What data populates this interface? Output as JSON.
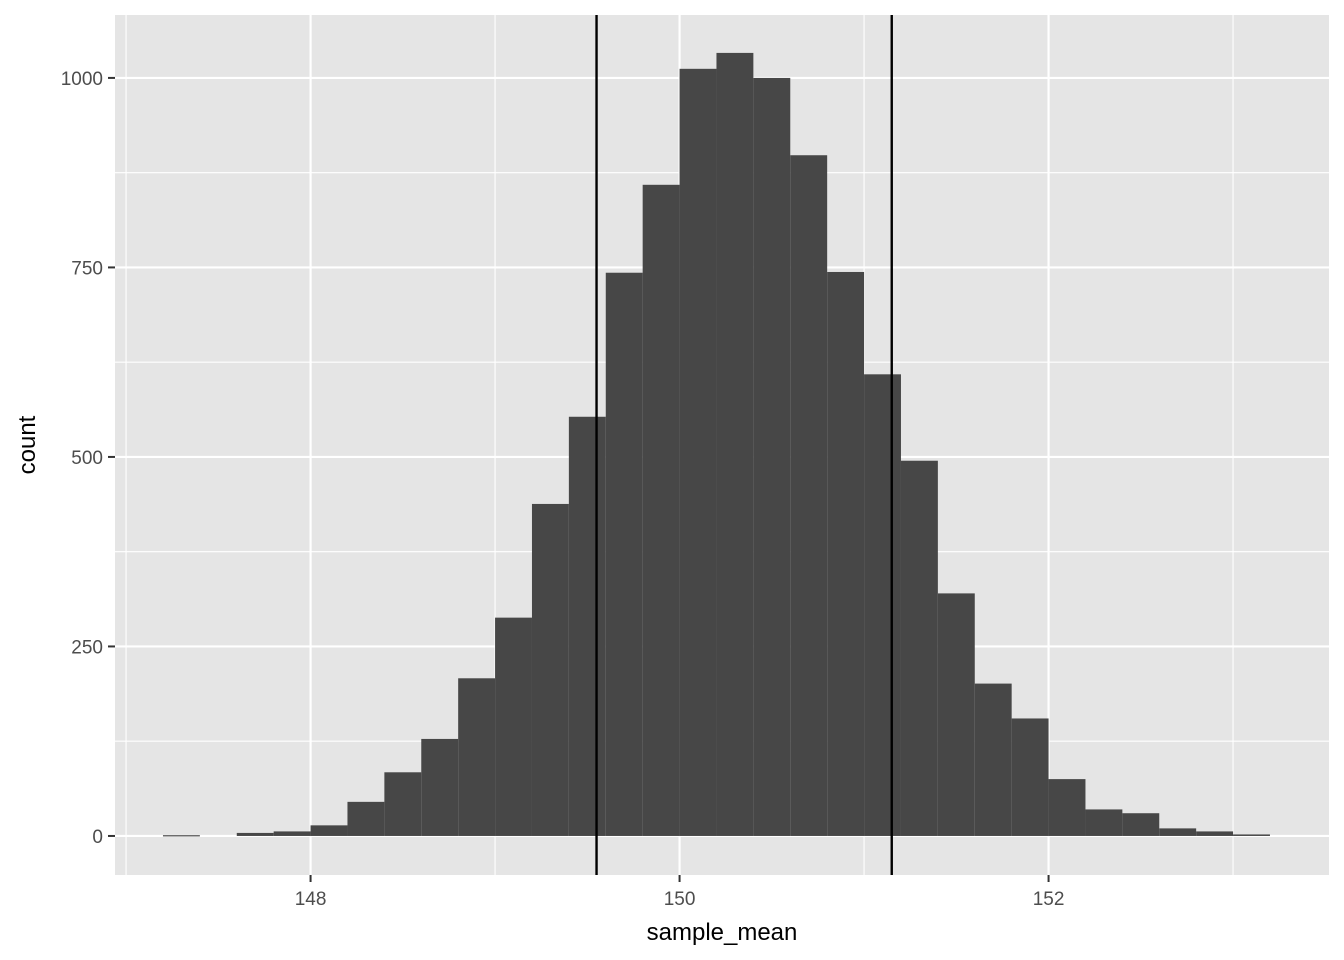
{
  "chart_data": {
    "type": "bar",
    "xlabel": "sample_mean",
    "ylabel": "count",
    "xlim": [
      146.94,
      153.52
    ],
    "ylim": [
      -51.5,
      1083
    ],
    "x_ticks": [
      148,
      150,
      152
    ],
    "y_ticks": [
      0,
      250,
      500,
      750,
      1000
    ],
    "x_minor_ticks": [
      147,
      149,
      151,
      153
    ],
    "y_minor_ticks": [
      125,
      375,
      625,
      875
    ],
    "bin_width": 0.2,
    "bins": [
      {
        "x": 147.3,
        "count": 1
      },
      {
        "x": 147.5,
        "count": 0
      },
      {
        "x": 147.7,
        "count": 4
      },
      {
        "x": 147.9,
        "count": 6
      },
      {
        "x": 148.1,
        "count": 14
      },
      {
        "x": 148.3,
        "count": 45
      },
      {
        "x": 148.5,
        "count": 84
      },
      {
        "x": 148.7,
        "count": 128
      },
      {
        "x": 148.9,
        "count": 208
      },
      {
        "x": 149.1,
        "count": 288
      },
      {
        "x": 149.3,
        "count": 438
      },
      {
        "x": 149.5,
        "count": 553
      },
      {
        "x": 149.7,
        "count": 743
      },
      {
        "x": 149.9,
        "count": 859
      },
      {
        "x": 150.1,
        "count": 1012
      },
      {
        "x": 150.3,
        "count": 1033
      },
      {
        "x": 150.5,
        "count": 1000
      },
      {
        "x": 150.7,
        "count": 898
      },
      {
        "x": 150.9,
        "count": 744
      },
      {
        "x": 151.1,
        "count": 609
      },
      {
        "x": 151.3,
        "count": 495
      },
      {
        "x": 151.5,
        "count": 320
      },
      {
        "x": 151.7,
        "count": 201
      },
      {
        "x": 151.9,
        "count": 155
      },
      {
        "x": 152.1,
        "count": 75
      },
      {
        "x": 152.3,
        "count": 35
      },
      {
        "x": 152.5,
        "count": 30
      },
      {
        "x": 152.7,
        "count": 10
      },
      {
        "x": 152.9,
        "count": 6
      },
      {
        "x": 153.1,
        "count": 2
      }
    ],
    "vlines": [
      149.55,
      151.15
    ],
    "grid": true,
    "colors": {
      "panel_background": "#e5e5e5",
      "grid": "#ffffff",
      "bar_fill": "#474747",
      "vline": "#000000",
      "tick_label": "#4d4d4d",
      "tick_mark": "#333333"
    }
  }
}
